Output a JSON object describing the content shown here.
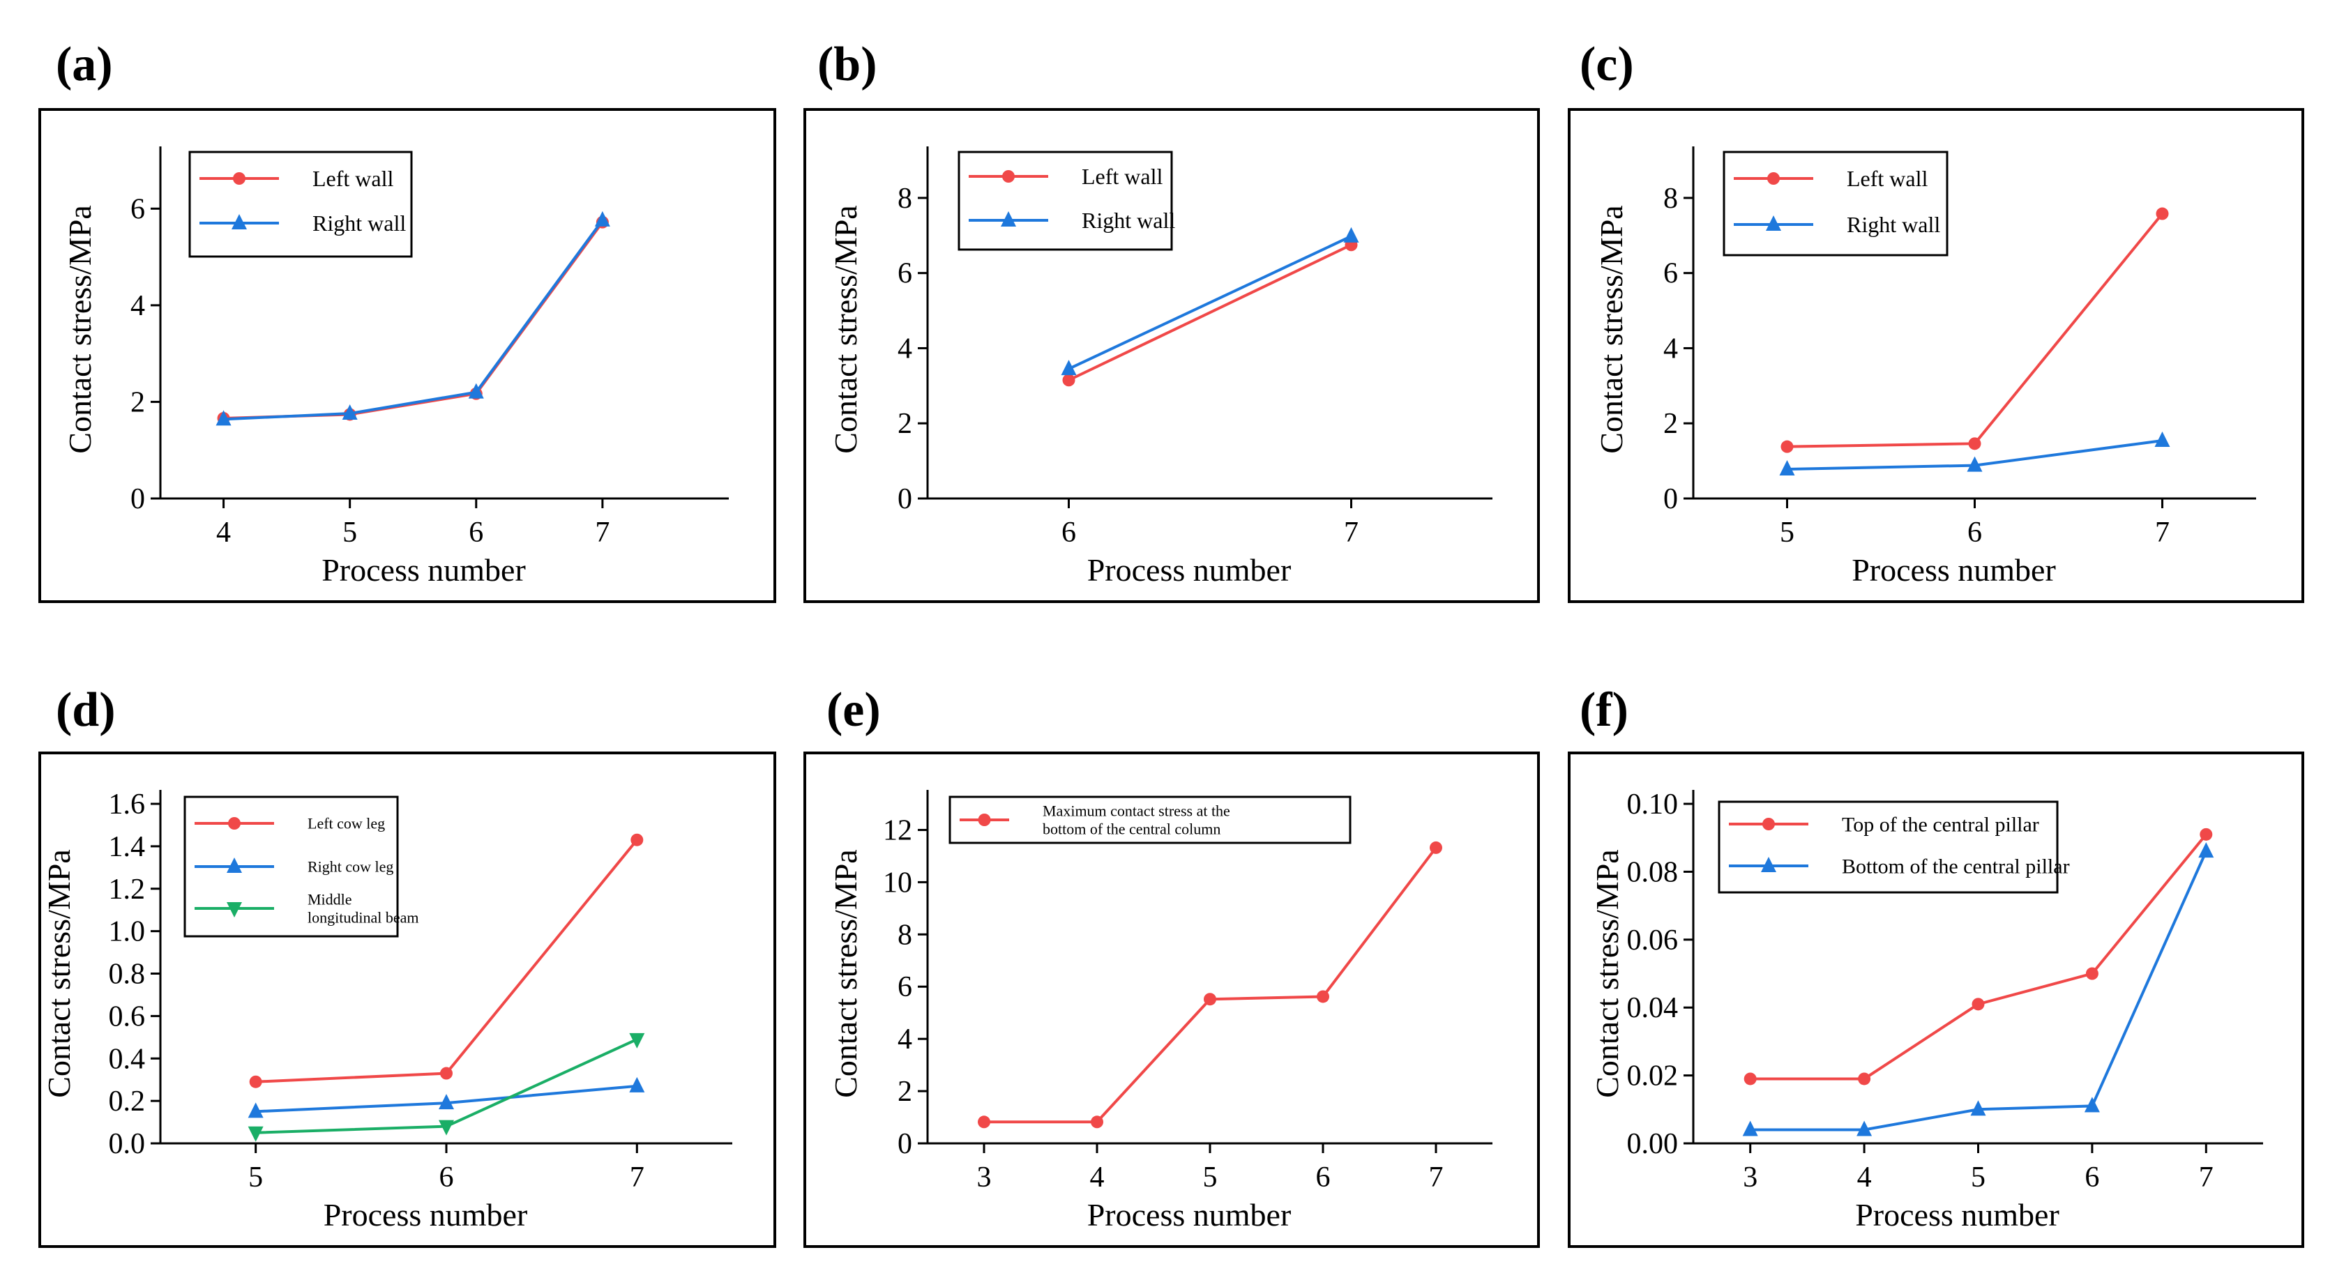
{
  "colors": {
    "red": "#f04848",
    "blue": "#1e78dc",
    "green": "#1aae66",
    "axis": "#000000"
  },
  "chart_data": [
    {
      "panel": "(a)",
      "type": "line",
      "xlabel": "Process number",
      "ylabel": "Contact stress/MPa",
      "x": [
        4,
        5,
        6,
        7
      ],
      "xlim": [
        3.5,
        8.0
      ],
      "ylim": [
        0,
        7
      ],
      "yticks": [
        "0",
        "2",
        "4",
        "6"
      ],
      "xticks": [
        "4",
        "5",
        "6",
        "7"
      ],
      "series": [
        {
          "name": "Left wall",
          "values": [
            1.66,
            1.74,
            2.17,
            5.72
          ],
          "color": "red",
          "marker": "circle"
        },
        {
          "name": "Right wall",
          "values": [
            1.64,
            1.76,
            2.2,
            5.76
          ],
          "color": "blue",
          "marker": "triangle-up"
        }
      ],
      "legend_position": "top-left"
    },
    {
      "panel": "(b)",
      "type": "line",
      "xlabel": "Process number",
      "ylabel": "Contact stress/MPa",
      "x": [
        6,
        7
      ],
      "xlim": [
        5.5,
        7.5
      ],
      "ylim": [
        0,
        9
      ],
      "yticks": [
        "0",
        "2",
        "4",
        "6",
        "8"
      ],
      "xticks": [
        "6",
        "7"
      ],
      "series": [
        {
          "name": "Left wall",
          "values": [
            3.15,
            6.75
          ],
          "color": "red",
          "marker": "circle"
        },
        {
          "name": "Right wall",
          "values": [
            3.45,
            6.98
          ],
          "color": "blue",
          "marker": "triangle-up"
        }
      ],
      "legend_position": "top-left"
    },
    {
      "panel": "(c)",
      "type": "line",
      "xlabel": "Process number",
      "ylabel": "Contact stress/MPa",
      "x": [
        5,
        6,
        7
      ],
      "xlim": [
        4.5,
        7.5
      ],
      "ylim": [
        0,
        9
      ],
      "yticks": [
        "0",
        "2",
        "4",
        "6",
        "8"
      ],
      "xticks": [
        "5",
        "6",
        "7"
      ],
      "series": [
        {
          "name": "Left wall",
          "values": [
            1.38,
            1.46,
            7.58
          ],
          "color": "red",
          "marker": "circle"
        },
        {
          "name": "Right wall",
          "values": [
            0.78,
            0.88,
            1.54
          ],
          "color": "blue",
          "marker": "triangle-up"
        }
      ],
      "legend_position": "top-left"
    },
    {
      "panel": "(d)",
      "type": "line",
      "xlabel": "Process number",
      "ylabel": "Contact stress/MPa",
      "x": [
        5,
        6,
        7
      ],
      "xlim": [
        4.5,
        7.5
      ],
      "ylim": [
        0,
        1.6
      ],
      "yticks": [
        "0.0",
        "0.2",
        "0.4",
        "0.6",
        "0.8",
        "1.0",
        "1.2",
        "1.4",
        "1.6"
      ],
      "xticks": [
        "5",
        "6",
        "7"
      ],
      "series": [
        {
          "name": "Left cow leg",
          "values": [
            0.29,
            0.33,
            1.43
          ],
          "color": "red",
          "marker": "circle"
        },
        {
          "name": "Right cow leg",
          "values": [
            0.15,
            0.19,
            0.27
          ],
          "color": "blue",
          "marker": "triangle-up"
        },
        {
          "name": "Middle longitudinal beam",
          "name_lines": [
            "Middle",
            "longitudinal beam"
          ],
          "values": [
            0.05,
            0.08,
            0.49
          ],
          "color": "green",
          "marker": "triangle-down"
        }
      ],
      "legend_position": "top-left"
    },
    {
      "panel": "(e)",
      "type": "line",
      "xlabel": "Process number",
      "ylabel": "Contact stress/MPa",
      "x": [
        3,
        4,
        5,
        6,
        7
      ],
      "xlim": [
        2.5,
        7.5
      ],
      "ylim": [
        0,
        13
      ],
      "yticks": [
        "0",
        "2",
        "4",
        "6",
        "8",
        "10",
        "12"
      ],
      "xticks": [
        "3",
        "4",
        "5",
        "6",
        "7"
      ],
      "series": [
        {
          "name": "Maximum contact stress at the bottom of the central column",
          "name_lines": [
            "Maximum contact stress at the",
            "bottom of the central column"
          ],
          "values": [
            0.82,
            0.82,
            5.52,
            5.62,
            11.32
          ],
          "color": "red",
          "marker": "circle"
        }
      ],
      "legend_position": "top-left"
    },
    {
      "panel": "(f)",
      "type": "line",
      "xlabel": "Process number",
      "ylabel": "Contact stress/MPa",
      "x": [
        3,
        4,
        5,
        6,
        7
      ],
      "xlim": [
        2.5,
        7.5
      ],
      "ylim": [
        0,
        0.1
      ],
      "yticks": [
        "0.00",
        "0.02",
        "0.04",
        "0.06",
        "0.08",
        "0.10"
      ],
      "xticks": [
        "3",
        "4",
        "5",
        "6",
        "7"
      ],
      "series": [
        {
          "name": "Top of the central pillar",
          "values": [
            0.019,
            0.019,
            0.041,
            0.05,
            0.091
          ],
          "color": "red",
          "marker": "circle"
        },
        {
          "name": "Bottom of the central pillar",
          "values": [
            0.004,
            0.004,
            0.01,
            0.011,
            0.086
          ],
          "color": "blue",
          "marker": "triangle-up"
        }
      ],
      "legend_position": "top-left"
    }
  ]
}
